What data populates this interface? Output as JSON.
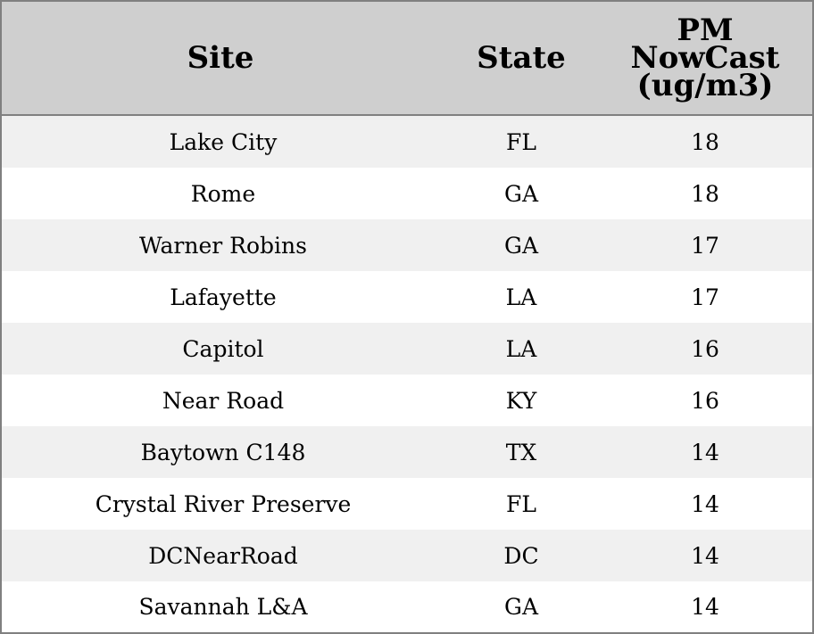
{
  "chart_data": {
    "type": "table",
    "columns": [
      "Site",
      "State",
      "PM NowCast (ug/m3)"
    ],
    "column_lines": [
      [
        "Site"
      ],
      [
        "State"
      ],
      [
        "PM",
        "NowCast",
        "(ug/m3)"
      ]
    ],
    "rows": [
      [
        "Lake City",
        "FL",
        "18"
      ],
      [
        "Rome",
        "GA",
        "18"
      ],
      [
        "Warner Robins",
        "GA",
        "17"
      ],
      [
        "Lafayette",
        "LA",
        "17"
      ],
      [
        "Capitol",
        "LA",
        "16"
      ],
      [
        "Near Road",
        "KY",
        "16"
      ],
      [
        "Baytown C148",
        "TX",
        "14"
      ],
      [
        "Crystal River Preserve",
        "FL",
        "14"
      ],
      [
        "DCNearRoad",
        "DC",
        "14"
      ],
      [
        "Savannah L&A",
        "GA",
        "14"
      ]
    ]
  },
  "colors": {
    "header_bg": "#cfcfcf",
    "row_stripe": "#f0f0f0",
    "row_plain": "#ffffff",
    "border": "#808080"
  }
}
